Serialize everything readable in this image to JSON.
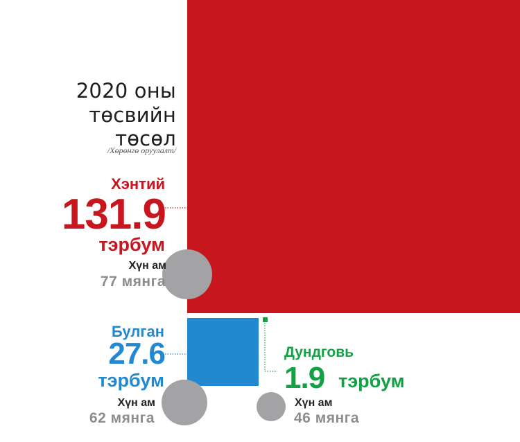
{
  "chart_data": {
    "type": "proportional-area",
    "title": [
      "2020 оны",
      "төсвийн",
      "төсөл"
    ],
    "subtitle": "/Хөрөнгө оруулалт/",
    "unit": "тэрбум",
    "population_label": "Хүн ам",
    "regions": [
      {
        "name": "Хэнтий",
        "value": 131.9,
        "value_label": "131.9",
        "population": "77 мянга",
        "color": "#c8161e"
      },
      {
        "name": "Булган",
        "value": 27.6,
        "value_label": "27.6",
        "population": "62 мянга",
        "color": "#2288d0"
      },
      {
        "name": "Дундговь",
        "value": 1.9,
        "value_label": "1.9",
        "population": "46 мянга",
        "color": "#14a145"
      }
    ],
    "circle_color": "#a3a3a5"
  }
}
